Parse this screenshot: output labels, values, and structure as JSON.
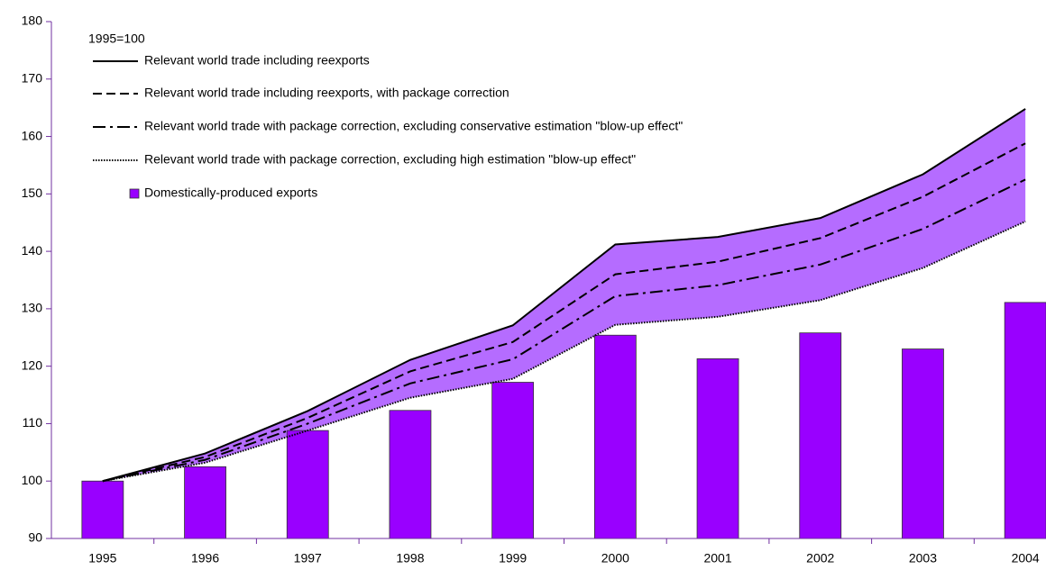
{
  "chart_data": {
    "type": "bar",
    "annotation": "1995=100",
    "categories": [
      "1995",
      "1996",
      "1997",
      "1998",
      "1999",
      "2000",
      "2001",
      "2002",
      "2003",
      "2004"
    ],
    "series": [
      {
        "name": "Relevant world trade including reexports",
        "style": "solid",
        "color": "#000000",
        "values": [
          100,
          104.8,
          112.2,
          121.1,
          127.1,
          141.2,
          142.5,
          145.8,
          153.4,
          164.8
        ]
      },
      {
        "name": "Relevant world trade including reexports, with package correction",
        "style": "dashed",
        "color": "#000000",
        "values": [
          100,
          104.2,
          111,
          119.1,
          124.2,
          136,
          138.2,
          142.3,
          149.5,
          158.8
        ]
      },
      {
        "name": "Relevant world trade with package correction, excluding conservative estimation \"blow-up effect\"",
        "style": "dashdot",
        "color": "#000000",
        "values": [
          100,
          103.7,
          110,
          117,
          121.2,
          132.2,
          134.1,
          137.7,
          143.9,
          152.5
        ]
      },
      {
        "name": "Relevant world trade with package correction, excluding high estimation \"blow-up effect\"",
        "style": "dotted",
        "color": "#000000",
        "values": [
          100,
          103.2,
          108.8,
          114.5,
          117.8,
          127.2,
          128.6,
          131.5,
          137.1,
          145.2
        ]
      },
      {
        "name": "Domestically-produced exports",
        "style": "bar",
        "color": "#9900ff",
        "values": [
          100,
          102.5,
          108.8,
          112.3,
          117.2,
          125.4,
          121.3,
          125.8,
          123,
          131.1
        ]
      }
    ],
    "band_color": "#b56cff",
    "ylim": [
      90,
      180
    ],
    "yticks": [
      90,
      100,
      110,
      120,
      130,
      140,
      150,
      160,
      170,
      180
    ]
  }
}
